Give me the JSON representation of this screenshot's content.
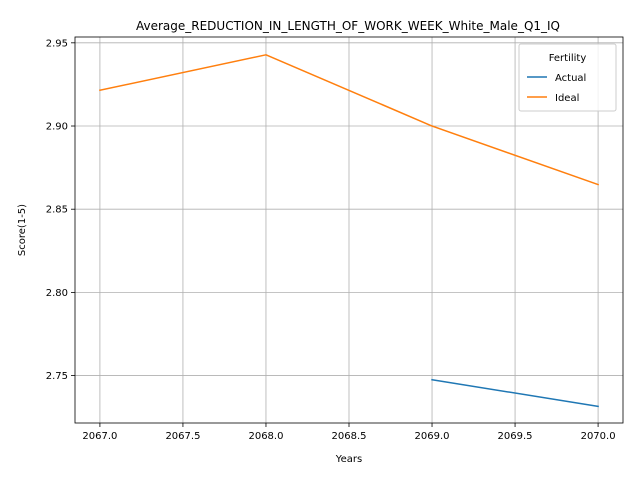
{
  "chart_data": {
    "type": "line",
    "title": "Average_REDUCTION_IN_LENGTH_OF_WORK_WEEK_White_Male_Q1_IQ",
    "xlabel": "Years",
    "ylabel": "Score(1-5)",
    "xlim": [
      2066.85,
      2070.15
    ],
    "ylim": [
      2.7215,
      2.9535
    ],
    "xticks": [
      2067.0,
      2067.5,
      2068.0,
      2068.5,
      2069.0,
      2069.5,
      2070.0
    ],
    "xtick_labels": [
      "2067.0",
      "2067.5",
      "2068.0",
      "2068.5",
      "2069.0",
      "2069.5",
      "2070.0"
    ],
    "yticks": [
      2.75,
      2.8,
      2.85,
      2.9,
      2.95
    ],
    "ytick_labels": [
      "2.75",
      "2.80",
      "2.85",
      "2.90",
      "2.95"
    ],
    "grid": true,
    "legend": {
      "title": "Fertility",
      "placement": "top-right"
    },
    "series": [
      {
        "name": "Actual",
        "color": "#1f77b4",
        "x": [
          2069,
          2070
        ],
        "y": [
          2.7475,
          2.7315
        ]
      },
      {
        "name": "Ideal",
        "color": "#ff7f0e",
        "x": [
          2067,
          2068,
          2069,
          2070
        ],
        "y": [
          2.9215,
          2.9428,
          2.9,
          2.8648
        ]
      }
    ]
  }
}
